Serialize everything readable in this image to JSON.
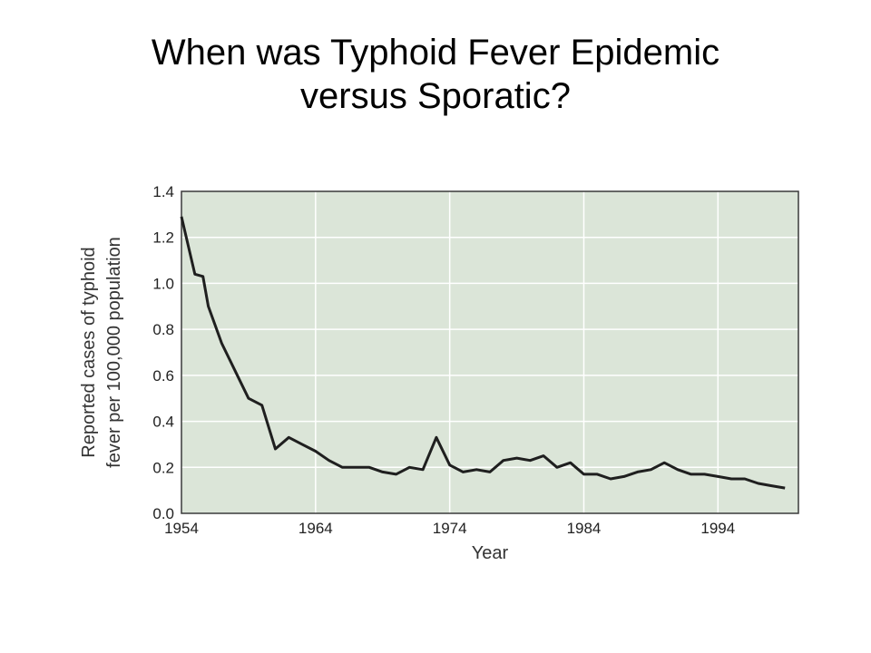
{
  "slide": {
    "title_line1": "When was Typhoid Fever Epidemic",
    "title_line2": "versus Sporatic?"
  },
  "colors": {
    "plot_background": "#dbe5d8",
    "line": "#1f1f1f",
    "grid": "#ffffff"
  },
  "chart_data": {
    "type": "line",
    "title": "",
    "xlabel": "Year",
    "ylabel_lines": [
      "Reported cases of typhoid",
      "fever per 100,000 population"
    ],
    "xlim": [
      1954,
      2000
    ],
    "ylim": [
      0.0,
      1.4
    ],
    "xticks": [
      1954,
      1964,
      1974,
      1984,
      1994
    ],
    "yticks": [
      0.0,
      0.2,
      0.4,
      0.6,
      0.8,
      1.0,
      1.2,
      1.4
    ],
    "ytick_labels": [
      "0.0",
      "0.2",
      "0.4",
      "0.6",
      "0.8",
      "1.0",
      "1.2",
      "1.4"
    ],
    "grid": true,
    "series": [
      {
        "x": [
          1954,
          1955,
          1955.6,
          1956,
          1957,
          1958,
          1959,
          1960,
          1961,
          1962,
          1963,
          1964,
          1965,
          1966,
          1967,
          1968,
          1969,
          1970,
          1971,
          1972,
          1973,
          1974,
          1975,
          1976,
          1977,
          1978,
          1979,
          1980,
          1981,
          1982,
          1983,
          1984,
          1985,
          1986,
          1987,
          1988,
          1989,
          1990,
          1991,
          1992,
          1993,
          1994,
          1995,
          1996,
          1997,
          1998,
          1999
        ],
        "y": [
          1.29,
          1.04,
          1.03,
          0.9,
          0.74,
          0.62,
          0.5,
          0.47,
          0.28,
          0.33,
          0.3,
          0.27,
          0.23,
          0.2,
          0.2,
          0.2,
          0.18,
          0.17,
          0.2,
          0.19,
          0.33,
          0.21,
          0.18,
          0.19,
          0.18,
          0.23,
          0.24,
          0.23,
          0.25,
          0.2,
          0.22,
          0.17,
          0.17,
          0.15,
          0.16,
          0.18,
          0.19,
          0.22,
          0.19,
          0.17,
          0.17,
          0.16,
          0.15,
          0.15,
          0.13,
          0.12,
          0.11
        ]
      }
    ]
  }
}
